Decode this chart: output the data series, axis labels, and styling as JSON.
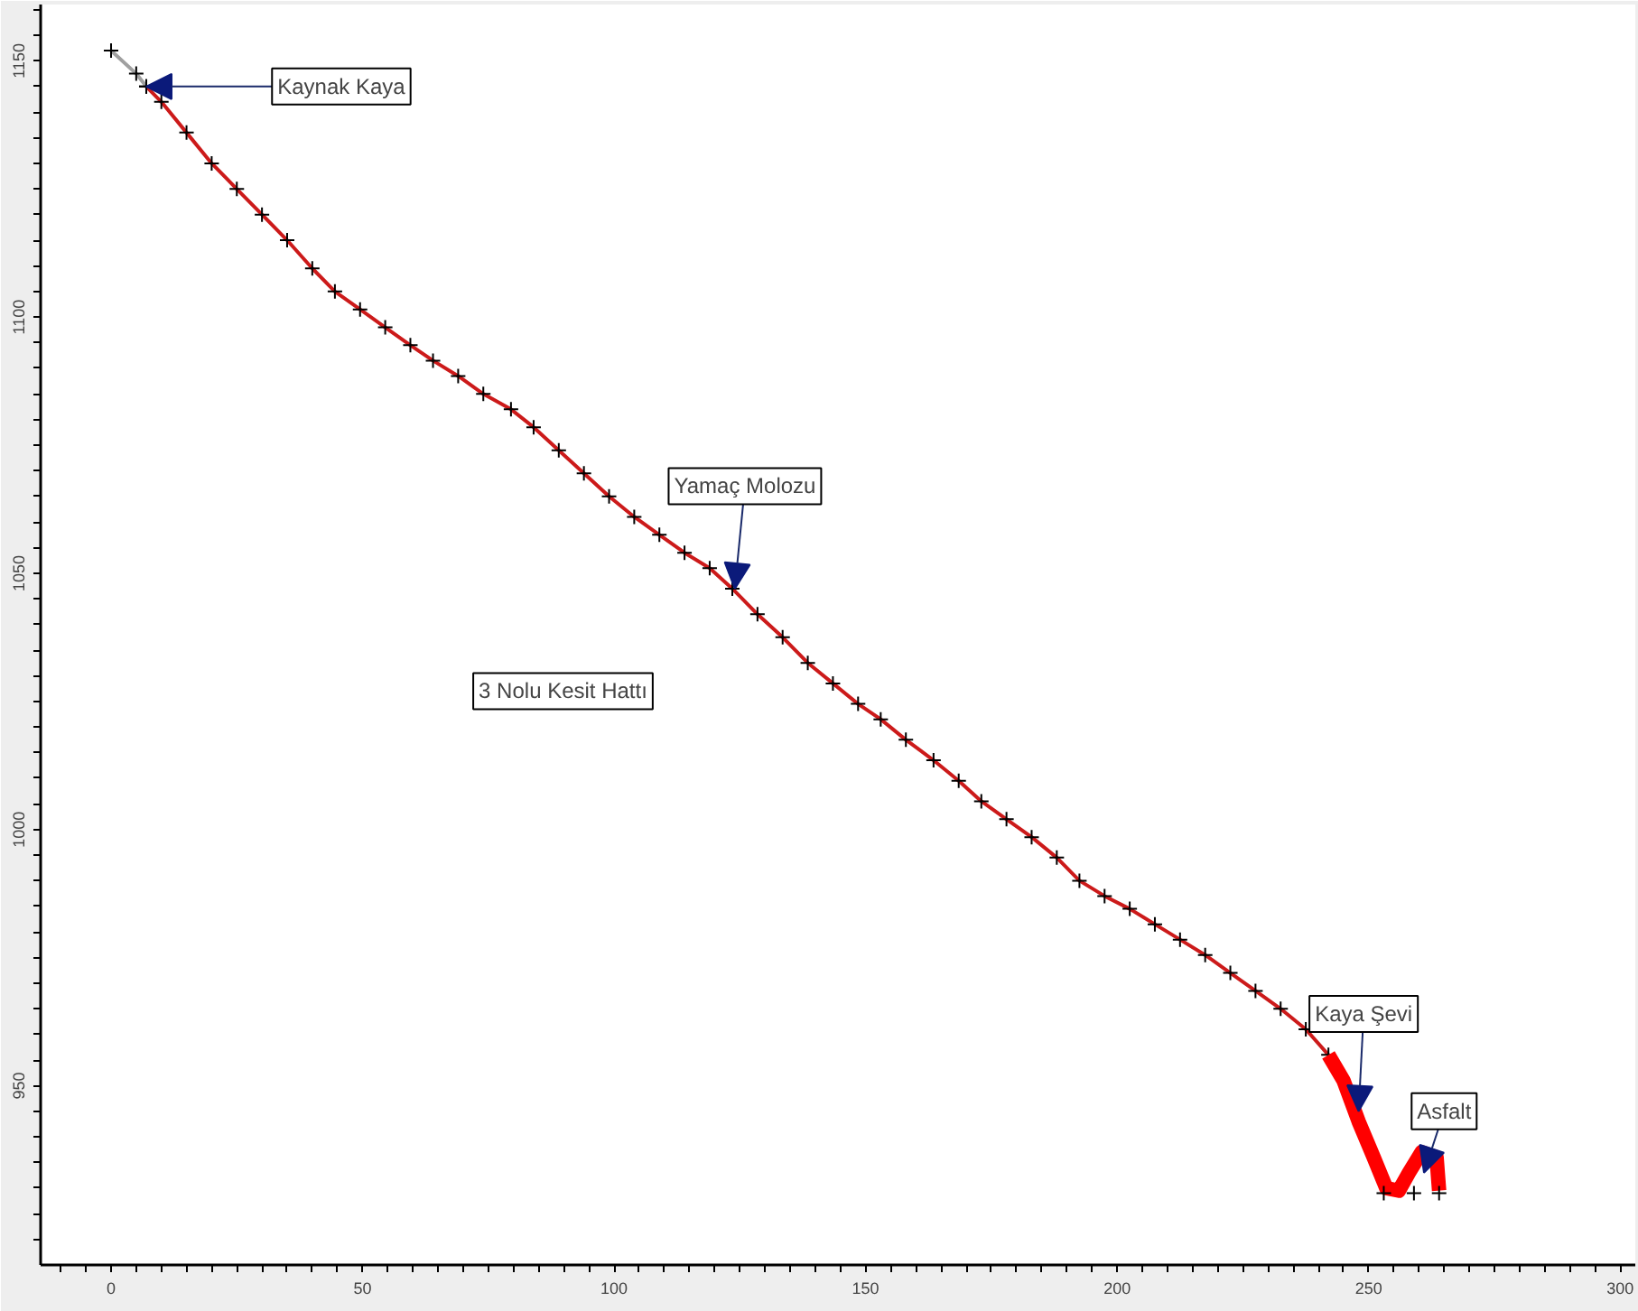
{
  "chart_data": {
    "type": "line",
    "xlim": [
      -14,
      303
    ],
    "ylim": [
      915,
      1161
    ],
    "xticks": [
      {
        "value": -10,
        "label": null
      },
      {
        "value": -5,
        "label": null
      },
      0,
      {
        "value": 5,
        "label": null
      },
      {
        "value": 10,
        "label": null
      },
      {
        "value": 15,
        "label": null
      },
      {
        "value": 20,
        "label": null
      },
      {
        "value": 25,
        "label": null
      },
      {
        "value": 30,
        "label": null
      },
      {
        "value": 35,
        "label": null
      },
      {
        "value": 40,
        "label": null
      },
      {
        "value": 45,
        "label": null
      },
      50,
      {
        "value": 55,
        "label": null
      },
      {
        "value": 60,
        "label": null
      },
      {
        "value": 65,
        "label": null
      },
      {
        "value": 70,
        "label": null
      },
      {
        "value": 75,
        "label": null
      },
      {
        "value": 80,
        "label": null
      },
      {
        "value": 85,
        "label": null
      },
      {
        "value": 90,
        "label": null
      },
      {
        "value": 95,
        "label": null
      },
      100,
      {
        "value": 105,
        "label": null
      },
      {
        "value": 110,
        "label": null
      },
      {
        "value": 115,
        "label": null
      },
      {
        "value": 120,
        "label": null
      },
      {
        "value": 125,
        "label": null
      },
      {
        "value": 130,
        "label": null
      },
      {
        "value": 135,
        "label": null
      },
      {
        "value": 140,
        "label": null
      },
      {
        "value": 145,
        "label": null
      },
      150,
      {
        "value": 155,
        "label": null
      },
      {
        "value": 160,
        "label": null
      },
      {
        "value": 165,
        "label": null
      },
      {
        "value": 170,
        "label": null
      },
      {
        "value": 175,
        "label": null
      },
      {
        "value": 180,
        "label": null
      },
      {
        "value": 185,
        "label": null
      },
      {
        "value": 190,
        "label": null
      },
      {
        "value": 195,
        "label": null
      },
      200,
      {
        "value": 205,
        "label": null
      },
      {
        "value": 210,
        "label": null
      },
      {
        "value": 215,
        "label": null
      },
      {
        "value": 220,
        "label": null
      },
      {
        "value": 225,
        "label": null
      },
      {
        "value": 230,
        "label": null
      },
      {
        "value": 235,
        "label": null
      },
      {
        "value": 240,
        "label": null
      },
      {
        "value": 245,
        "label": null
      },
      250,
      {
        "value": 255,
        "label": null
      },
      {
        "value": 260,
        "label": null
      },
      {
        "value": 265,
        "label": null
      },
      {
        "value": 270,
        "label": null
      },
      {
        "value": 275,
        "label": null
      },
      {
        "value": 280,
        "label": null
      },
      {
        "value": 285,
        "label": null
      },
      {
        "value": 290,
        "label": null
      },
      {
        "value": 295,
        "label": null
      },
      300
    ],
    "yticks": [
      {
        "value": 920,
        "label": null
      },
      {
        "value": 925,
        "label": null
      },
      {
        "value": 930,
        "label": null
      },
      {
        "value": 935,
        "label": null
      },
      {
        "value": 940,
        "label": null
      },
      {
        "value": 945,
        "label": null
      },
      950,
      {
        "value": 955,
        "label": null
      },
      {
        "value": 960,
        "label": null
      },
      {
        "value": 965,
        "label": null
      },
      {
        "value": 970,
        "label": null
      },
      {
        "value": 975,
        "label": null
      },
      {
        "value": 980,
        "label": null
      },
      {
        "value": 985,
        "label": null
      },
      {
        "value": 990,
        "label": null
      },
      {
        "value": 995,
        "label": null
      },
      1000,
      {
        "value": 1005,
        "label": null
      },
      {
        "value": 1010,
        "label": null
      },
      {
        "value": 1015,
        "label": null
      },
      {
        "value": 1020,
        "label": null
      },
      {
        "value": 1025,
        "label": null
      },
      {
        "value": 1030,
        "label": null
      },
      {
        "value": 1035,
        "label": null
      },
      {
        "value": 1040,
        "label": null
      },
      {
        "value": 1045,
        "label": null
      },
      1050,
      {
        "value": 1055,
        "label": null
      },
      {
        "value": 1060,
        "label": null
      },
      {
        "value": 1065,
        "label": null
      },
      {
        "value": 1070,
        "label": null
      },
      {
        "value": 1075,
        "label": null
      },
      {
        "value": 1080,
        "label": null
      },
      {
        "value": 1085,
        "label": null
      },
      {
        "value": 1090,
        "label": null
      },
      {
        "value": 1095,
        "label": null
      },
      1100,
      {
        "value": 1105,
        "label": null
      },
      {
        "value": 1110,
        "label": null
      },
      {
        "value": 1115,
        "label": null
      },
      {
        "value": 1120,
        "label": null
      },
      {
        "value": 1125,
        "label": null
      },
      {
        "value": 1130,
        "label": null
      },
      {
        "value": 1135,
        "label": null
      },
      {
        "value": 1140,
        "label": null
      },
      {
        "value": 1145,
        "label": null
      },
      1150,
      {
        "value": 1155,
        "label": null
      },
      {
        "value": 1160,
        "label": null
      }
    ],
    "grid": false,
    "series": [
      {
        "color": "#a0a0a0",
        "marker": "cross",
        "x": [
          0,
          5,
          7
        ],
        "values": [
          1152,
          1147.5,
          1145
        ]
      },
      {
        "color": "#cc1a1a",
        "marker": "cross",
        "x": [
          7,
          10,
          15,
          20,
          25,
          30,
          35,
          40,
          44.5,
          49.5,
          54.5,
          59.5,
          64,
          69,
          74,
          79.5,
          84,
          89,
          94,
          99,
          104,
          109,
          114,
          119,
          123.5,
          128.5,
          133.5,
          138.5,
          143.5,
          148.5,
          153,
          158,
          163.5,
          168.5,
          173,
          178,
          183,
          188,
          192.5,
          197.5,
          202.5,
          207.5,
          212.5,
          217.5,
          222.5,
          227.5,
          232.5,
          237.5,
          242
        ],
        "values": [
          1145,
          1142,
          1136,
          1130,
          1125,
          1120,
          1115,
          1109.5,
          1105,
          1101.5,
          1098,
          1094.5,
          1091.5,
          1088.5,
          1085,
          1082,
          1078.5,
          1074,
          1069.5,
          1065,
          1061,
          1057.5,
          1054,
          1051,
          1047,
          1042,
          1037.5,
          1032.5,
          1028.5,
          1024.5,
          1021.5,
          1017.5,
          1013.5,
          1009.5,
          1005.5,
          1002,
          998.5,
          994.5,
          990,
          987,
          984.5,
          981.5,
          978.5,
          975.5,
          972,
          968.5,
          965,
          961,
          956
        ]
      },
      {
        "color": "#ff0000",
        "marker": "none",
        "x": [
          242,
          245,
          248,
          251,
          253.5,
          256,
          258,
          260.5,
          263.5,
          264
        ],
        "values": [
          956,
          951,
          943,
          936,
          930,
          929.5,
          933,
          937,
          936,
          929.5
        ]
      },
      {
        "type": "scatter",
        "color": "#000000",
        "marker": "cross",
        "x": [
          253,
          259,
          264
        ],
        "values": [
          929,
          929,
          929
        ]
      }
    ],
    "annotations": [
      {
        "text": "Kaynak Kaya",
        "x": 7,
        "y": 1145
      },
      {
        "text": "Yamaç Molozu",
        "x": 124,
        "y": 1047
      },
      "3 Nolu Kesit Hattı",
      {
        "text": "Kaya Şevi",
        "x": 248,
        "y": 945
      },
      {
        "text": "Asfalt",
        "x": 261,
        "y": 933
      }
    ]
  }
}
